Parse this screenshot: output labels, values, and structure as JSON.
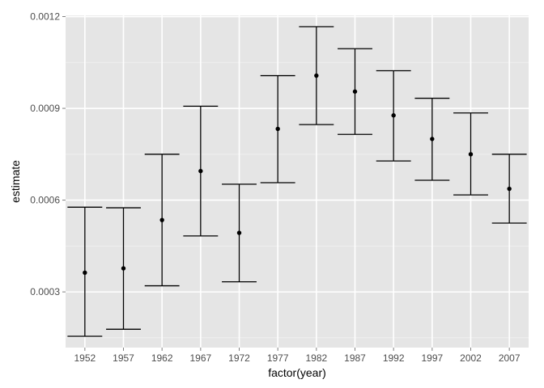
{
  "chart_data": {
    "type": "errorbar",
    "xlabel": "factor(year)",
    "ylabel": "estimate",
    "categories": [
      "1952",
      "1957",
      "1962",
      "1967",
      "1972",
      "1977",
      "1982",
      "1987",
      "1992",
      "1997",
      "2002",
      "2007"
    ],
    "estimate": [
      0.000363,
      0.000377,
      0.000535,
      0.000695,
      0.000493,
      0.000833,
      0.001007,
      0.000955,
      0.000877,
      0.0008,
      0.00075,
      0.000637
    ],
    "lower": [
      0.000155,
      0.000178,
      0.00032,
      0.000483,
      0.000333,
      0.000657,
      0.000847,
      0.000815,
      0.000728,
      0.000665,
      0.000617,
      0.000525
    ],
    "upper": [
      0.000577,
      0.000575,
      0.00075,
      0.000907,
      0.000652,
      0.001007,
      0.001167,
      0.001095,
      0.001023,
      0.000933,
      0.000885,
      0.00075
    ],
    "ylim": [
      0.000118,
      0.001204
    ],
    "yticks": [
      0.0003,
      0.0006,
      0.0009,
      0.0012
    ],
    "ytick_labels": [
      "0.0003",
      "0.0006",
      "0.0009",
      "0.0012"
    ],
    "colors": {
      "panel": "#e5e5e5",
      "grid": "#ffffff",
      "marks": "#000000",
      "tick_text": "#4d4d4d"
    }
  }
}
